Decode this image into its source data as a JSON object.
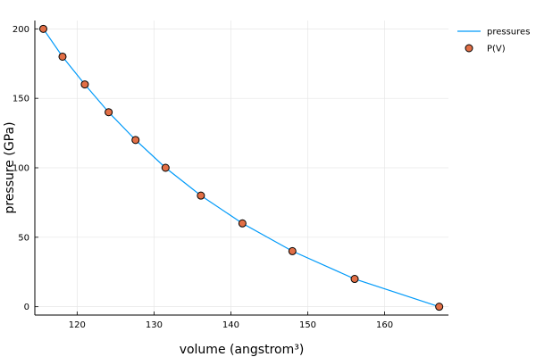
{
  "chart_data": {
    "type": "line",
    "xlabel": "volume (angstrom³)",
    "ylabel": "pressure (GPa)",
    "xlim": [
      114.5,
      168.3
    ],
    "ylim": [
      -6,
      206
    ],
    "x_ticks": [
      120,
      130,
      140,
      150,
      160
    ],
    "y_ticks": [
      0,
      50,
      100,
      150,
      200
    ],
    "grid": true,
    "legend_position": "top-right",
    "series": [
      {
        "name": "pressures",
        "kind": "line",
        "color": "#009AF9",
        "x": [
          115.6,
          118.1,
          121.0,
          124.1,
          127.6,
          131.5,
          136.1,
          141.5,
          148.0,
          156.1,
          167.1
        ],
        "y": [
          200,
          180,
          160,
          140,
          120,
          100,
          80,
          60,
          40,
          20,
          0
        ]
      },
      {
        "name": "P(V)",
        "kind": "scatter",
        "color": "#E26F46",
        "x": [
          115.6,
          118.1,
          121.0,
          124.1,
          127.6,
          131.5,
          136.1,
          141.5,
          148.0,
          156.1,
          167.1
        ],
        "y": [
          200,
          180,
          160,
          140,
          120,
          100,
          80,
          60,
          40,
          20,
          0
        ]
      }
    ]
  }
}
